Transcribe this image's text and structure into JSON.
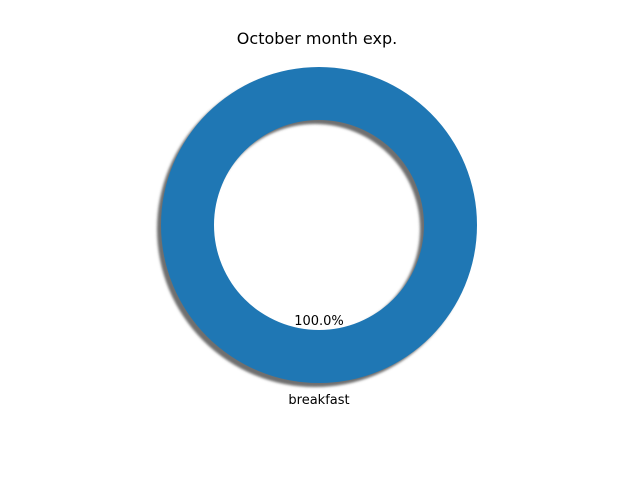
{
  "chart_data": {
    "type": "pie",
    "title": "October month exp.",
    "donut": true,
    "shadow": true,
    "slices": [
      {
        "label": "breakfast",
        "value": 100,
        "percent_label": "100.0%",
        "color": "#1f77b4"
      }
    ]
  }
}
